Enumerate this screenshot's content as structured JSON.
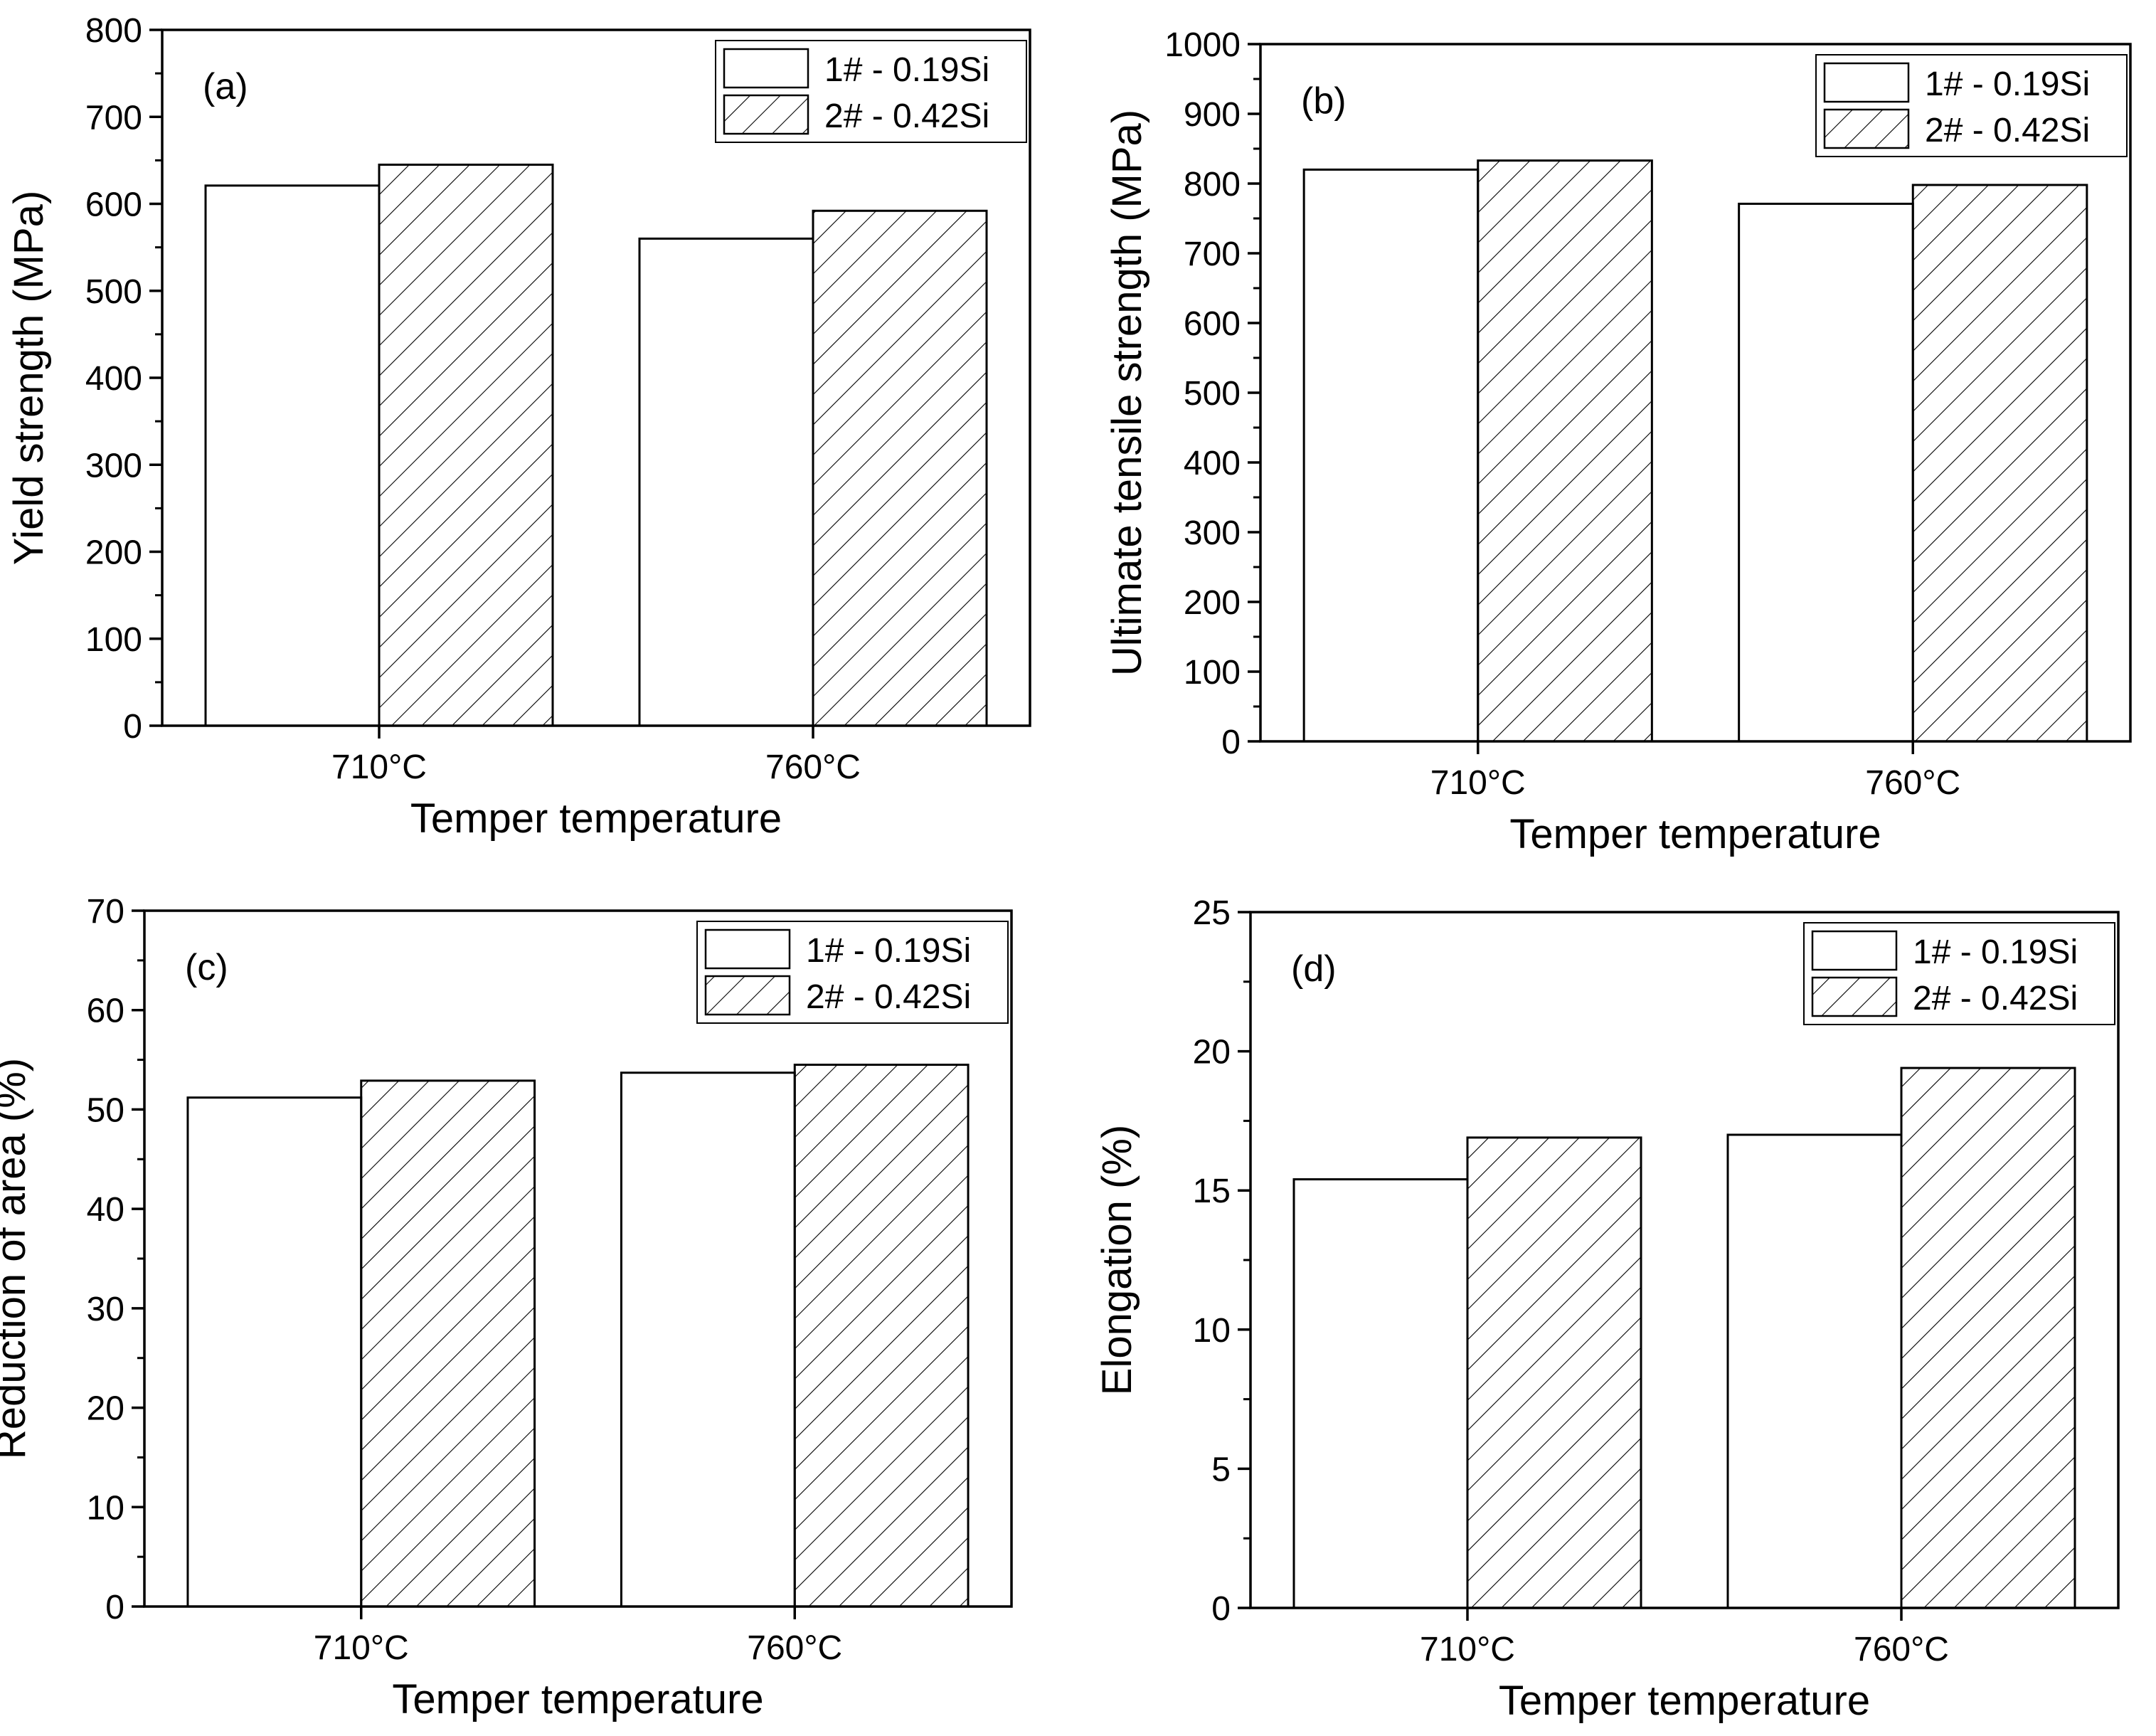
{
  "figure": {
    "panel_count": 4
  },
  "chart_data": [
    {
      "type": "bar",
      "panel_label": "(a)",
      "title": "",
      "xlabel": "Temper temperature",
      "ylabel": "Yield strength (MPa)",
      "categories": [
        "710°C",
        "760°C"
      ],
      "ylim": [
        0,
        800
      ],
      "yticks": [
        0,
        100,
        200,
        300,
        400,
        500,
        600,
        700,
        800
      ],
      "yminor_step": 50,
      "legend_position": "top-right",
      "series": [
        {
          "name": "1# - 0.19Si",
          "fill": "plain",
          "values": [
            621,
            560
          ]
        },
        {
          "name": "2# - 0.42Si",
          "fill": "hatched",
          "values": [
            645,
            592
          ]
        }
      ]
    },
    {
      "type": "bar",
      "panel_label": "(b)",
      "title": "",
      "xlabel": "Temper temperature",
      "ylabel": "Ultimate tensile strength (MPa)",
      "categories": [
        "710°C",
        "760°C"
      ],
      "ylim": [
        0,
        1000
      ],
      "yticks": [
        0,
        100,
        200,
        300,
        400,
        500,
        600,
        700,
        800,
        900,
        1000
      ],
      "yminor_step": 50,
      "legend_position": "top-right",
      "series": [
        {
          "name": "1# - 0.19Si",
          "fill": "plain",
          "values": [
            820,
            771
          ]
        },
        {
          "name": "2# - 0.42Si",
          "fill": "hatched",
          "values": [
            833,
            798
          ]
        }
      ]
    },
    {
      "type": "bar",
      "panel_label": "(c)",
      "title": "",
      "xlabel": "Temper temperature",
      "ylabel": "Reduction of area (%)",
      "categories": [
        "710°C",
        "760°C"
      ],
      "ylim": [
        0,
        70
      ],
      "yticks": [
        0,
        10,
        20,
        30,
        40,
        50,
        60,
        70
      ],
      "yminor_step": 5,
      "legend_position": "top-right",
      "series": [
        {
          "name": "1# - 0.19Si",
          "fill": "plain",
          "values": [
            51.2,
            53.7
          ]
        },
        {
          "name": "2# - 0.42Si",
          "fill": "hatched",
          "values": [
            52.9,
            54.5
          ]
        }
      ]
    },
    {
      "type": "bar",
      "panel_label": "(d)",
      "title": "",
      "xlabel": "Temper temperature",
      "ylabel": "Elongation (%)",
      "categories": [
        "710°C",
        "760°C"
      ],
      "ylim": [
        0,
        25
      ],
      "yticks": [
        0,
        5,
        10,
        15,
        20,
        25
      ],
      "yminor_step": 2.5,
      "legend_position": "top-right",
      "series": [
        {
          "name": "1# - 0.19Si",
          "fill": "plain",
          "values": [
            15.4,
            17.0
          ]
        },
        {
          "name": "2# - 0.42Si",
          "fill": "hatched",
          "values": [
            16.9,
            19.4
          ]
        }
      ]
    }
  ]
}
